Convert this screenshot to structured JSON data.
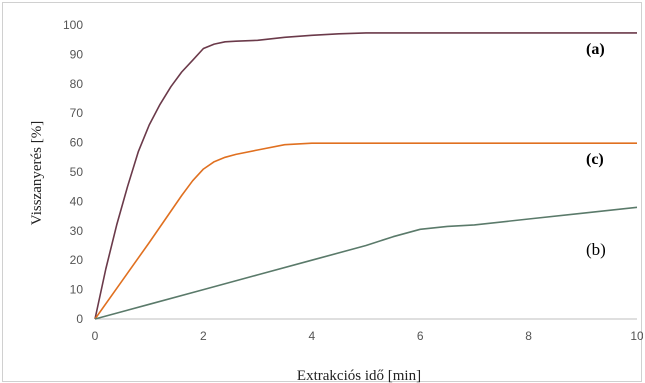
{
  "chart_data": {
    "type": "line",
    "title": "",
    "xlabel": "Extrakciós idő [min]",
    "ylabel": "Visszanyerés [%]",
    "xlim": [
      0,
      10
    ],
    "ylim": [
      0,
      100
    ],
    "x_ticks": [
      "0",
      "2",
      "4",
      "6",
      "8",
      "10"
    ],
    "y_ticks": [
      "0",
      "10",
      "20",
      "30",
      "40",
      "50",
      "60",
      "70",
      "80",
      "90",
      "100"
    ],
    "grid": false,
    "series": [
      {
        "label": "(a)",
        "color": "#6b3a4a",
        "x": [
          0,
          0.2,
          0.4,
          0.6,
          0.8,
          1.0,
          1.2,
          1.4,
          1.6,
          1.8,
          2.0,
          2.2,
          2.4,
          2.6,
          3.0,
          3.5,
          4.0,
          4.5,
          5.0,
          6.0,
          8.0,
          10.0
        ],
        "y": [
          0,
          17,
          32,
          45,
          57,
          66,
          73,
          79,
          84,
          88,
          92,
          93.5,
          94.3,
          94.5,
          94.8,
          95.8,
          96.5,
          97,
          97.3,
          97.3,
          97.3,
          97.3
        ]
      },
      {
        "label": "(c)",
        "color": "#e07020",
        "x": [
          0,
          0.5,
          1.0,
          1.3,
          1.6,
          1.8,
          2.0,
          2.2,
          2.4,
          2.6,
          3.0,
          3.5,
          4.0,
          5.0,
          10.0
        ],
        "y": [
          0,
          13,
          26,
          34,
          42,
          47,
          51,
          53.5,
          55,
          56,
          57.5,
          59.3,
          59.8,
          59.8,
          59.8
        ]
      },
      {
        "label": "(b)",
        "color": "#5a7a6a",
        "x": [
          0,
          1,
          2,
          3,
          4,
          5,
          5.5,
          6,
          6.5,
          7,
          8,
          9,
          10
        ],
        "y": [
          0,
          5,
          10,
          15,
          20,
          25,
          28,
          30.5,
          31.5,
          32,
          34,
          36,
          38
        ]
      }
    ]
  }
}
